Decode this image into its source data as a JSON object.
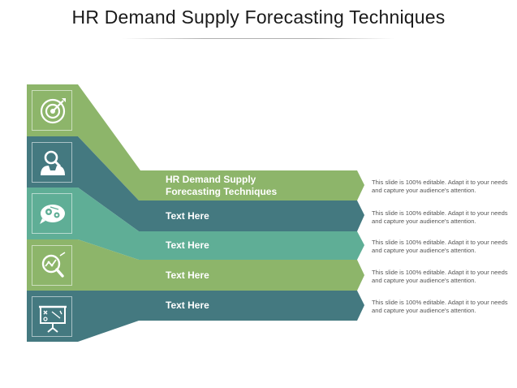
{
  "title": "HR Demand Supply Forecasting Techniques",
  "bands": [
    {
      "label": "HR Demand Supply Forecasting Techniques",
      "description": "This slide is 100% editable. Adapt it to your needs and capture your audience's attention.",
      "color": "#8db56a"
    },
    {
      "label": "Text Here",
      "description": "This slide is 100% editable. Adapt it to your needs and capture your audience's attention.",
      "color": "#447980"
    },
    {
      "label": "Text Here",
      "description": "This slide is 100% editable. Adapt it to your needs and capture your audience's attention.",
      "color": "#5fae96"
    },
    {
      "label": "Text Here",
      "description": "This slide is 100% editable. Adapt it to your needs and capture your audience's attention.",
      "color": "#8db56a"
    },
    {
      "label": "Text Here",
      "description": "This slide is 100% editable. Adapt it to your needs and capture your audience's attention.",
      "color": "#447980"
    }
  ],
  "icons": [
    "target-icon",
    "user-search-icon",
    "brain-gears-icon",
    "analytics-magnifier-icon",
    "presentation-board-icon"
  ]
}
